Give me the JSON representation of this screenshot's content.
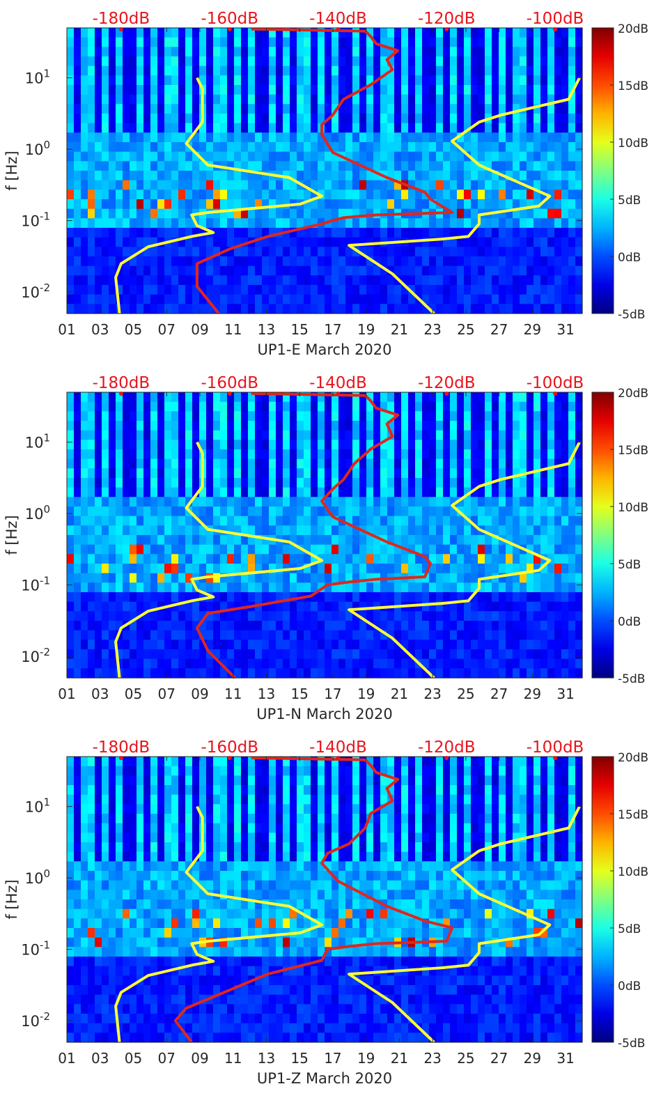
{
  "figure": {
    "panels": [
      {
        "id": "E",
        "xlabel": "UP1-E March 2020"
      },
      {
        "id": "N",
        "xlabel": "UP1-N March 2020"
      },
      {
        "id": "Z",
        "xlabel": "UP1-Z March 2020"
      }
    ]
  },
  "chart_data": [
    {
      "type": "heatmap",
      "title": "",
      "xlabel": "UP1-E March 2020",
      "ylabel": "f [Hz]",
      "x_ticks": [
        "01",
        "03",
        "05",
        "07",
        "09",
        "11",
        "13",
        "15",
        "17",
        "19",
        "21",
        "23",
        "25",
        "27",
        "29",
        "31"
      ],
      "xlim": [
        1,
        32
      ],
      "y_scale": "log",
      "ylim": [
        0.005,
        50
      ],
      "y_ticks": [
        {
          "value": 0.01,
          "base": "10",
          "exp": "-2"
        },
        {
          "value": 0.1,
          "base": "10",
          "exp": "-1"
        },
        {
          "value": 1,
          "base": "10",
          "exp": "0"
        },
        {
          "value": 10,
          "base": "10",
          "exp": "1"
        }
      ],
      "top_axis": {
        "labels": [
          "-180dB",
          "-160dB",
          "-140dB",
          "-120dB",
          "-100dB"
        ],
        "values": [
          -180,
          -160,
          -140,
          -120,
          -100
        ],
        "range": [
          -190,
          -95
        ],
        "color": "#e8141c"
      },
      "colorbar": {
        "labels": [
          "20dB",
          "15dB",
          "10dB",
          "5dB",
          "0dB",
          "-5dB"
        ],
        "values": [
          20,
          15,
          10,
          5,
          0,
          -5
        ],
        "range": [
          -5,
          20
        ],
        "colormap": "jet"
      },
      "series": [
        {
          "color": "#ffff33",
          "axis": "top",
          "points": [
            [
              -180.3,
              0.005
            ],
            [
              -181,
              0.016
            ],
            [
              -180,
              0.025
            ],
            [
              -175,
              0.043
            ],
            [
              -167,
              0.06
            ],
            [
              -163,
              0.068
            ],
            [
              -166,
              0.085
            ],
            [
              -167,
              0.12
            ],
            [
              -164,
              0.13
            ],
            [
              -147,
              0.17
            ],
            [
              -143,
              0.22
            ],
            [
              -149,
              0.4
            ],
            [
              -164,
              0.6
            ],
            [
              -168,
              1.2
            ],
            [
              -165,
              2.4
            ],
            [
              -165,
              4.5
            ],
            [
              -165,
              7
            ],
            [
              -166,
              10
            ]
          ]
        },
        {
          "color": "#ffff33",
          "axis": "top",
          "points": [
            [
              -122.3,
              0.005
            ],
            [
              -130,
              0.018
            ],
            [
              -138,
              0.045
            ],
            [
              -121,
              0.055
            ],
            [
              -116,
              0.06
            ],
            [
              -114,
              0.09
            ],
            [
              -114,
              0.12
            ],
            [
              -103,
              0.16
            ],
            [
              -101,
              0.22
            ],
            [
              -114,
              0.6
            ],
            [
              -119,
              1.3
            ],
            [
              -114,
              2.4
            ],
            [
              -110,
              3
            ],
            [
              -103,
              4
            ],
            [
              -97.5,
              5
            ],
            [
              -95.5,
              10
            ]
          ]
        },
        {
          "color": "#e0261d",
          "axis": "top",
          "points": [
            [
              -162,
              0.005
            ],
            [
              -166,
              0.012
            ],
            [
              -166,
              0.025
            ],
            [
              -160,
              0.04
            ],
            [
              -153,
              0.06
            ],
            [
              -143,
              0.09
            ],
            [
              -141,
              0.1
            ],
            [
              -139,
              0.11
            ],
            [
              -133,
              0.12
            ],
            [
              -119,
              0.13
            ],
            [
              -123,
              0.2
            ],
            [
              -124,
              0.25
            ],
            [
              -131,
              0.4
            ],
            [
              -141,
              0.9
            ],
            [
              -143,
              1.6
            ],
            [
              -143,
              2.2
            ],
            [
              -141,
              3
            ],
            [
              -139,
              5
            ],
            [
              -134,
              8
            ],
            [
              -130,
              13
            ],
            [
              -131,
              18
            ],
            [
              -129,
              24
            ],
            [
              -133,
              30
            ],
            [
              -134,
              38
            ],
            [
              -135,
              45
            ],
            [
              -156,
              48
            ]
          ]
        }
      ]
    },
    {
      "type": "heatmap",
      "title": "",
      "xlabel": "UP1-N March 2020",
      "ylabel": "f [Hz]",
      "x_ticks": [
        "01",
        "03",
        "05",
        "07",
        "09",
        "11",
        "13",
        "15",
        "17",
        "19",
        "21",
        "23",
        "25",
        "27",
        "29",
        "31"
      ],
      "xlim": [
        1,
        32
      ],
      "y_scale": "log",
      "ylim": [
        0.005,
        50
      ],
      "y_ticks": [
        {
          "value": 0.01,
          "base": "10",
          "exp": "-2"
        },
        {
          "value": 0.1,
          "base": "10",
          "exp": "-1"
        },
        {
          "value": 1,
          "base": "10",
          "exp": "0"
        },
        {
          "value": 10,
          "base": "10",
          "exp": "1"
        }
      ],
      "top_axis": {
        "labels": [
          "-180dB",
          "-160dB",
          "-140dB",
          "-120dB",
          "-100dB"
        ],
        "values": [
          -180,
          -160,
          -140,
          -120,
          -100
        ],
        "range": [
          -190,
          -95
        ],
        "color": "#e8141c"
      },
      "colorbar": {
        "labels": [
          "20dB",
          "15dB",
          "10dB",
          "5dB",
          "0dB",
          "-5dB"
        ],
        "values": [
          20,
          15,
          10,
          5,
          0,
          -5
        ],
        "range": [
          -5,
          20
        ],
        "colormap": "jet"
      },
      "series": [
        {
          "color": "#ffff33",
          "axis": "top",
          "points": [
            [
              -180.3,
              0.005
            ],
            [
              -181,
              0.016
            ],
            [
              -180,
              0.025
            ],
            [
              -175,
              0.043
            ],
            [
              -167,
              0.06
            ],
            [
              -163,
              0.068
            ],
            [
              -166,
              0.085
            ],
            [
              -167,
              0.12
            ],
            [
              -164,
              0.13
            ],
            [
              -147,
              0.17
            ],
            [
              -143,
              0.22
            ],
            [
              -149,
              0.4
            ],
            [
              -164,
              0.6
            ],
            [
              -168,
              1.2
            ],
            [
              -165,
              2.4
            ],
            [
              -165,
              4.5
            ],
            [
              -165,
              7
            ],
            [
              -166,
              10
            ]
          ]
        },
        {
          "color": "#ffff33",
          "axis": "top",
          "points": [
            [
              -122.3,
              0.005
            ],
            [
              -130,
              0.018
            ],
            [
              -138,
              0.045
            ],
            [
              -121,
              0.055
            ],
            [
              -116,
              0.06
            ],
            [
              -114,
              0.09
            ],
            [
              -114,
              0.12
            ],
            [
              -103,
              0.16
            ],
            [
              -101,
              0.22
            ],
            [
              -114,
              0.6
            ],
            [
              -119,
              1.3
            ],
            [
              -114,
              2.4
            ],
            [
              -110,
              3
            ],
            [
              -103,
              4
            ],
            [
              -97.5,
              5
            ],
            [
              -95.5,
              10
            ]
          ]
        },
        {
          "color": "#e0261d",
          "axis": "top",
          "points": [
            [
              -159,
              0.005
            ],
            [
              -164,
              0.012
            ],
            [
              -166,
              0.025
            ],
            [
              -164,
              0.04
            ],
            [
              -156,
              0.05
            ],
            [
              -145,
              0.07
            ],
            [
              -142,
              0.1
            ],
            [
              -138,
              0.11
            ],
            [
              -133,
              0.12
            ],
            [
              -124,
              0.13
            ],
            [
              -123,
              0.2
            ],
            [
              -124,
              0.25
            ],
            [
              -131,
              0.4
            ],
            [
              -141,
              0.9
            ],
            [
              -143,
              1.5
            ],
            [
              -141,
              2.2
            ],
            [
              -139,
              3
            ],
            [
              -137,
              5
            ],
            [
              -134,
              8
            ],
            [
              -130,
              12
            ],
            [
              -131,
              18
            ],
            [
              -129,
              24
            ],
            [
              -133,
              30
            ],
            [
              -134,
              38
            ],
            [
              -135,
              45
            ],
            [
              -156,
              48
            ]
          ]
        }
      ]
    },
    {
      "type": "heatmap",
      "title": "",
      "xlabel": "UP1-Z March 2020",
      "ylabel": "f [Hz]",
      "x_ticks": [
        "01",
        "03",
        "05",
        "07",
        "09",
        "11",
        "13",
        "15",
        "17",
        "19",
        "21",
        "23",
        "25",
        "27",
        "29",
        "31"
      ],
      "xlim": [
        1,
        32
      ],
      "y_scale": "log",
      "ylim": [
        0.005,
        50
      ],
      "y_ticks": [
        {
          "value": 0.01,
          "base": "10",
          "exp": "-2"
        },
        {
          "value": 0.1,
          "base": "10",
          "exp": "-1"
        },
        {
          "value": 1,
          "base": "10",
          "exp": "0"
        },
        {
          "value": 10,
          "base": "10",
          "exp": "1"
        }
      ],
      "top_axis": {
        "labels": [
          "-180dB",
          "-160dB",
          "-140dB",
          "-120dB",
          "-100dB"
        ],
        "values": [
          -180,
          -160,
          -140,
          -120,
          -100
        ],
        "range": [
          -190,
          -95
        ],
        "color": "#e8141c"
      },
      "colorbar": {
        "labels": [
          "20dB",
          "15dB",
          "10dB",
          "5dB",
          "0dB",
          "-5dB"
        ],
        "values": [
          20,
          15,
          10,
          5,
          0,
          -5
        ],
        "range": [
          -5,
          20
        ],
        "colormap": "jet"
      },
      "series": [
        {
          "color": "#ffff33",
          "axis": "top",
          "points": [
            [
              -180.3,
              0.005
            ],
            [
              -181,
              0.016
            ],
            [
              -180,
              0.025
            ],
            [
              -175,
              0.043
            ],
            [
              -167,
              0.06
            ],
            [
              -163,
              0.068
            ],
            [
              -166,
              0.085
            ],
            [
              -167,
              0.12
            ],
            [
              -164,
              0.13
            ],
            [
              -147,
              0.17
            ],
            [
              -143,
              0.22
            ],
            [
              -149,
              0.4
            ],
            [
              -164,
              0.6
            ],
            [
              -168,
              1.2
            ],
            [
              -165,
              2.4
            ],
            [
              -165,
              4.5
            ],
            [
              -165,
              7
            ],
            [
              -166,
              10
            ]
          ]
        },
        {
          "color": "#ffff33",
          "axis": "top",
          "points": [
            [
              -122.3,
              0.005
            ],
            [
              -130,
              0.018
            ],
            [
              -138,
              0.045
            ],
            [
              -121,
              0.055
            ],
            [
              -116,
              0.06
            ],
            [
              -114,
              0.09
            ],
            [
              -114,
              0.12
            ],
            [
              -103,
              0.16
            ],
            [
              -101,
              0.22
            ],
            [
              -114,
              0.6
            ],
            [
              -119,
              1.3
            ],
            [
              -114,
              2.4
            ],
            [
              -110,
              3
            ],
            [
              -103,
              4
            ],
            [
              -97.5,
              5
            ],
            [
              -95.5,
              10
            ]
          ]
        },
        {
          "color": "#e0261d",
          "axis": "top",
          "points": [
            [
              -167,
              0.005
            ],
            [
              -170,
              0.01
            ],
            [
              -168,
              0.015
            ],
            [
              -161,
              0.025
            ],
            [
              -153,
              0.045
            ],
            [
              -143,
              0.07
            ],
            [
              -142,
              0.1
            ],
            [
              -138,
              0.11
            ],
            [
              -133,
              0.12
            ],
            [
              -120,
              0.13
            ],
            [
              -119,
              0.2
            ],
            [
              -124,
              0.25
            ],
            [
              -131,
              0.4
            ],
            [
              -140,
              0.9
            ],
            [
              -143,
              1.6
            ],
            [
              -142,
              2.2
            ],
            [
              -138,
              3
            ],
            [
              -135,
              5
            ],
            [
              -134,
              8
            ],
            [
              -130,
              12
            ],
            [
              -131,
              18
            ],
            [
              -129,
              24
            ],
            [
              -133,
              30
            ],
            [
              -134,
              38
            ],
            [
              -135,
              45
            ],
            [
              -156,
              48
            ]
          ]
        }
      ]
    }
  ]
}
